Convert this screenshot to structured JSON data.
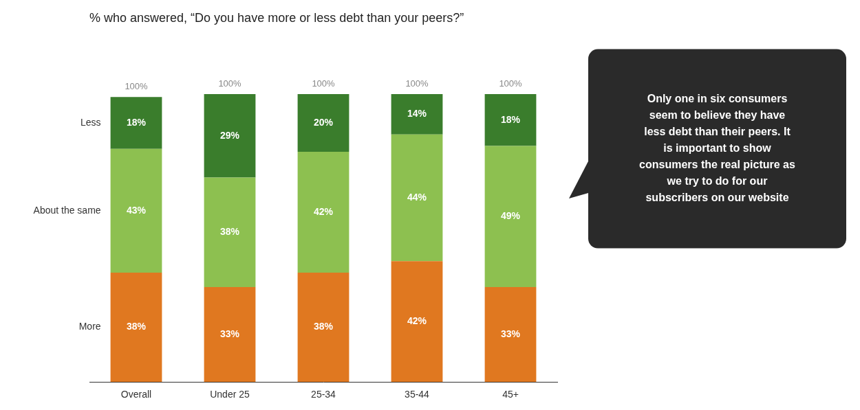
{
  "chart_data": {
    "type": "bar",
    "title": "% who answered, “Do you have more or less debt than your peers?”",
    "categories": [
      "Overall",
      "Under 25",
      "25-34",
      "35-44",
      "45+"
    ],
    "series": [
      {
        "name": "More",
        "color": "#E07820",
        "values": [
          38,
          33,
          38,
          42,
          33
        ],
        "value_labels": [
          "38%",
          "33%",
          "38%",
          "42%",
          "33%"
        ]
      },
      {
        "name": "About the same",
        "color": "#8DC050",
        "values": [
          43,
          38,
          42,
          44,
          49
        ],
        "value_labels": [
          "43%",
          "38%",
          "42%",
          "44%",
          "49%"
        ]
      },
      {
        "name": "Less",
        "color": "#3A7D2C",
        "values": [
          18,
          29,
          20,
          14,
          18
        ],
        "value_labels": [
          "18%",
          "29%",
          "20%",
          "14%",
          "18%"
        ]
      }
    ],
    "total_labels": [
      "100%",
      "100%",
      "100%",
      "100%",
      "100%"
    ],
    "stacked": true,
    "data_labels": true,
    "ylim": [
      0,
      118
    ],
    "tick_labels": "x",
    "grid": false,
    "legend": "left",
    "annotation": "Only one in six consumers\nseem to believe they have\nless debt than their peers. It\nis important to show\nconsumers the real picture as\nwe try to do for our\nsubscribers on our website"
  }
}
